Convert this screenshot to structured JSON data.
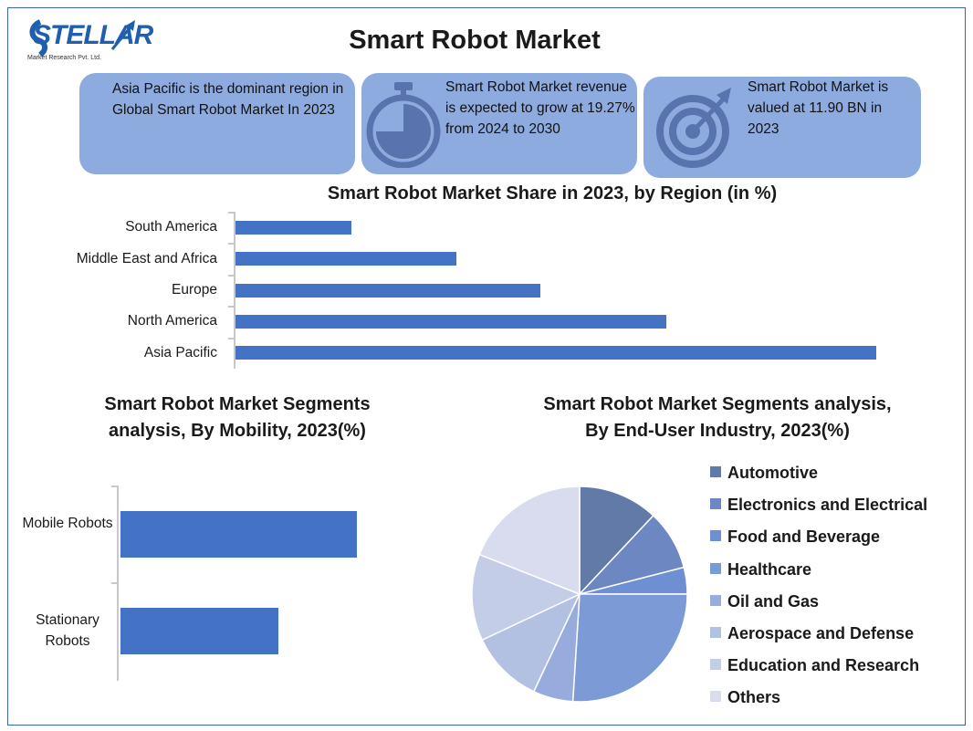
{
  "brand": {
    "name": "STELLAR",
    "sub": "Market Research Pvt. Ltd."
  },
  "title": "Smart Robot Market",
  "cards": [
    {
      "text": "Asia Pacific is the dominant region in Global Smart Robot Market In 2023"
    },
    {
      "text": "Smart Robot Market revenue is expected to grow at 19.27% from 2024 to 2030",
      "icon": "stopwatch-icon"
    },
    {
      "text": "Smart Robot Market is valued at 11.90 BN in 2023",
      "icon": "target-icon"
    }
  ],
  "colors": {
    "bar": "#4472c4",
    "card": "#8eabe0",
    "frame": "#3b64b4"
  },
  "chart_data": [
    {
      "type": "bar",
      "orientation": "horizontal",
      "title": "Smart Robot Market Share in 2023, by Region (in %)",
      "categories": [
        "South America",
        "Middle East and Africa",
        "Europe",
        "North America",
        "Asia Pacific"
      ],
      "values": [
        5.5,
        10.5,
        14.5,
        20.5,
        30.5
      ],
      "xlim": [
        0,
        32
      ]
    },
    {
      "type": "bar",
      "orientation": "horizontal",
      "title": "Smart Robot Market Segments analysis, By Mobility, 2023(%)",
      "categories": [
        "Mobile Robots",
        "Stationary Robots"
      ],
      "values": [
        60,
        40
      ],
      "xlim": [
        0,
        100
      ]
    },
    {
      "type": "pie",
      "title": "Smart Robot Market Segments analysis, By End-User Industry, 2023(%)",
      "categories": [
        "Automotive",
        "Electronics and Electrical",
        "Food and Beverage",
        "Healthcare",
        "Oil and Gas",
        "Aerospace and Defense",
        "Education and Research",
        "Others"
      ],
      "values": [
        12,
        9,
        4,
        26,
        6,
        11,
        13,
        19
      ],
      "colors": [
        "#627aa8",
        "#6d87c2",
        "#6f8fd3",
        "#7b9ad6",
        "#97abdc",
        "#b2c0e2",
        "#c4cde8",
        "#d8dcee"
      ],
      "legend_position": "right"
    }
  ]
}
